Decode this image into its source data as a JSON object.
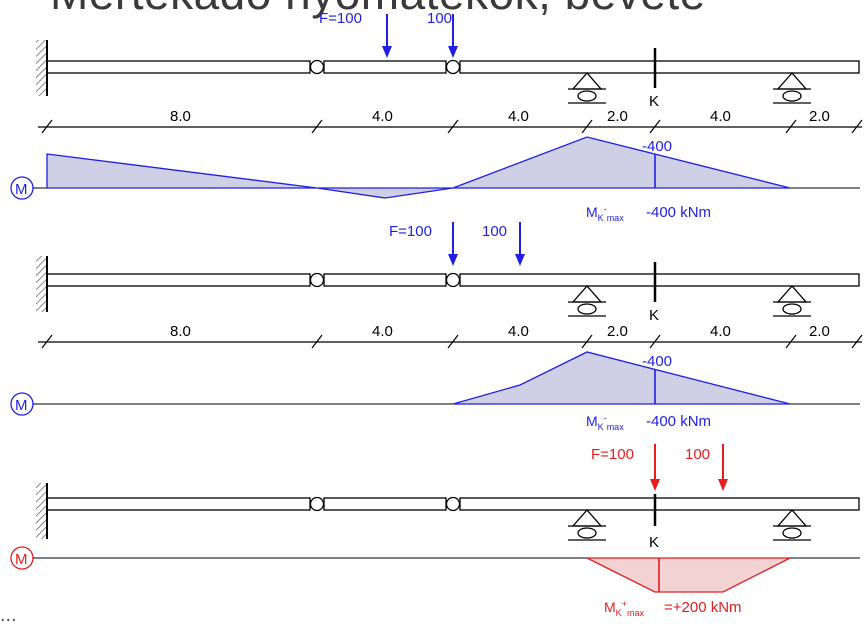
{
  "title": "Mértékadó nyomatékok, beveté",
  "footer": "...",
  "colors": {
    "blue": "#1f1fe6",
    "red": "#e81c1c",
    "fill_blue": "#cfd0e6",
    "fill_red": "#f2d2d2",
    "black": "#000000"
  },
  "panels": [
    {
      "loads": {
        "f_label": "F=100",
        "second_label": "100"
      },
      "dims": [
        "8.0",
        "4.0",
        "4.0",
        "2.0",
        "4.0",
        "2.0"
      ],
      "k_label": "K",
      "diagram_symbol": "M",
      "diagram_value": "-400",
      "result": {
        "main": "M",
        "sub": "K",
        "sup": "-",
        "sub2": "max",
        "value": "-400 kNm"
      }
    },
    {
      "loads": {
        "f_label": "F=100",
        "second_label": "100"
      },
      "dims": [
        "8.0",
        "4.0",
        "4.0",
        "2.0",
        "4.0",
        "2.0"
      ],
      "k_label": "K",
      "diagram_symbol": "M",
      "diagram_value": "-400",
      "result": {
        "main": "M",
        "sub": "K",
        "sup": "-",
        "sub2": "max",
        "value": "-400 kNm"
      }
    },
    {
      "loads": {
        "f_label": "F=100",
        "second_label": "100"
      },
      "k_label": "K",
      "diagram_symbol": "M",
      "result": {
        "main": "M",
        "sub": "K",
        "sup": "+",
        "sub2": "max",
        "value": "=+200 kNm"
      }
    }
  ]
}
